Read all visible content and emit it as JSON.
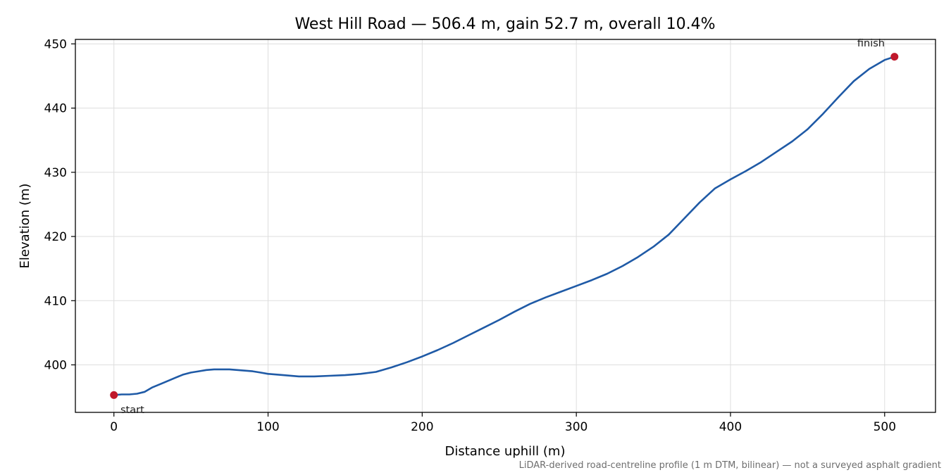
{
  "chart_data": {
    "type": "line",
    "title": "West Hill Road — 506.4 m, gain 52.7 m, overall 10.4%",
    "xlabel": "Distance uphill (m)",
    "ylabel": "Elevation (m)",
    "xlim": [
      -25,
      533
    ],
    "ylim": [
      392.6,
      450.7
    ],
    "xticks": [
      0,
      100,
      200,
      300,
      400,
      500
    ],
    "yticks": [
      400,
      410,
      420,
      430,
      440,
      450
    ],
    "grid": true,
    "line_color": "#1f5aa6",
    "marker_color": "#c0182b",
    "series": [
      {
        "x": [
          0,
          5,
          10,
          15,
          20,
          25,
          30,
          35,
          40,
          45,
          50,
          55,
          60,
          65,
          70,
          75,
          80,
          85,
          90,
          95,
          100,
          110,
          120,
          130,
          140,
          150,
          160,
          170,
          180,
          190,
          200,
          210,
          220,
          230,
          240,
          250,
          260,
          270,
          280,
          290,
          300,
          310,
          320,
          330,
          340,
          350,
          360,
          370,
          380,
          390,
          400,
          410,
          420,
          430,
          440,
          450,
          460,
          470,
          480,
          490,
          500,
          506.4
        ],
        "y": [
          395.3,
          395.4,
          395.4,
          395.5,
          395.8,
          396.5,
          397.0,
          397.5,
          398.0,
          398.5,
          398.8,
          399.0,
          399.2,
          399.3,
          399.3,
          399.3,
          399.2,
          399.1,
          399.0,
          398.8,
          398.6,
          398.4,
          398.2,
          398.2,
          398.3,
          398.4,
          398.6,
          398.9,
          399.6,
          400.4,
          401.3,
          402.3,
          403.4,
          404.6,
          405.8,
          407.0,
          408.3,
          409.5,
          410.5,
          411.4,
          412.3,
          413.2,
          414.2,
          415.4,
          416.8,
          418.4,
          420.3,
          422.8,
          425.3,
          427.5,
          428.9,
          430.2,
          431.6,
          433.2,
          434.8,
          436.7,
          439.1,
          441.7,
          444.2,
          446.1,
          447.5,
          448.0
        ]
      }
    ],
    "annotations": [
      {
        "text": "start",
        "x": 0,
        "y": 395.3
      },
      {
        "text": "finish",
        "x": 506.4,
        "y": 448.0
      }
    ],
    "footnote": "LiDAR-derived road-centreline profile (1 m DTM, bilinear) — not a surveyed asphalt gradient"
  }
}
